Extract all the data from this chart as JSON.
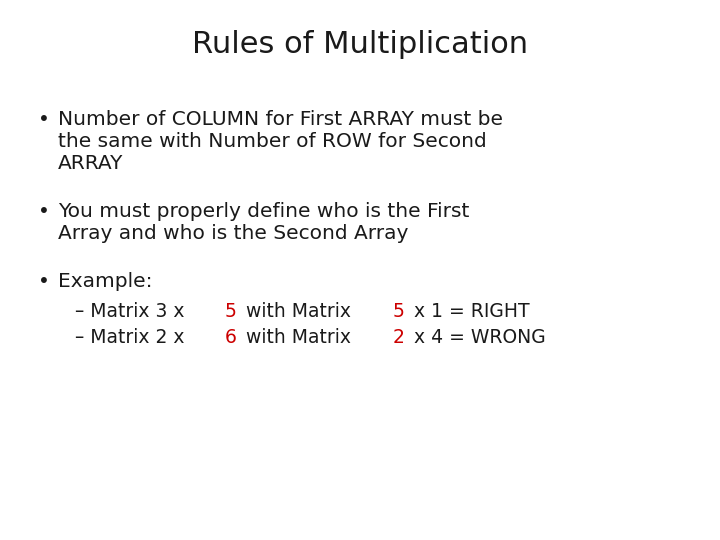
{
  "title": "Rules of Multiplication",
  "title_fontsize": 22,
  "title_color": "#1a1a1a",
  "background_color": "#ffffff",
  "bullet1_line1": "Number of COLUMN for First ARRAY must be",
  "bullet1_line2": "the same with Number of ROW for Second",
  "bullet1_line3": "ARRAY",
  "bullet2_line1": "You must properly define who is the First",
  "bullet2_line2": "Array and who is the Second Array",
  "bullet3": "Example:",
  "sub1_prefix": "– Matrix 3 x ",
  "sub1_red1": "5",
  "sub1_mid": " with Matrix ",
  "sub1_red2": "5",
  "sub1_suffix": " x 1 = RIGHT",
  "sub2_prefix": "– Matrix 2 x ",
  "sub2_red1": "6",
  "sub2_mid": " with Matrix ",
  "sub2_red2": "2",
  "sub2_suffix": " x 4 = WRONG",
  "text_color": "#1a1a1a",
  "red_color": "#cc0000",
  "body_fontsize": 14.5,
  "sub_fontsize": 13.5,
  "font_family": "DejaVu Sans"
}
